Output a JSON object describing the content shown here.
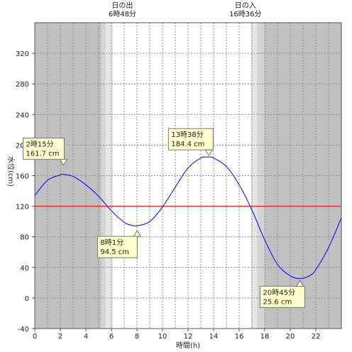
{
  "chart_data": {
    "type": "line",
    "title": "",
    "xlabel": "時間(h)",
    "ylabel": "水位(cm)",
    "xlim": [
      0,
      24
    ],
    "ylim": [
      -40,
      360
    ],
    "x_ticks": [
      0,
      2,
      4,
      6,
      8,
      10,
      12,
      14,
      16,
      18,
      20,
      22
    ],
    "y_ticks": [
      -40,
      0,
      40,
      80,
      120,
      160,
      200,
      240,
      280,
      320
    ],
    "grid": true,
    "sunrise": {
      "label": "日の出",
      "time": "6時48分",
      "hour": 6.8
    },
    "sunset": {
      "label": "日の入",
      "time": "16時36分",
      "hour": 16.6
    },
    "twilight": {
      "dark_end": 5.2,
      "mid_end": 5.55,
      "light_end": 6.1,
      "light_start": 16.95,
      "mid_start": 17.4,
      "dark_start": 18.0
    },
    "reference_level": 120,
    "colors": {
      "night": "#c0c0c0",
      "twilight_mid": "#d4d4d4",
      "twilight_light": "#e6e6e6",
      "curve": "#0000ff",
      "reference": "#ff0000",
      "callout_bg": "#ffffcc"
    },
    "series": [
      {
        "x": [
          0,
          1,
          2,
          2.25,
          3,
          4,
          5,
          6,
          7,
          7.5,
          8.02,
          9,
          10,
          11,
          12,
          13,
          13.63,
          14,
          15,
          16,
          17,
          18,
          19,
          20,
          20.75,
          21.5,
          22,
          23,
          24
        ],
        "values": [
          134,
          154,
          161,
          161.7,
          159,
          148,
          133,
          114,
          99,
          95.5,
          94.5,
          100,
          119,
          145,
          170,
          183,
          184.4,
          183,
          172,
          148,
          115,
          76,
          44,
          29,
          25.6,
          29,
          37,
          66,
          105
        ]
      }
    ],
    "annotations": [
      {
        "time": "2時15分",
        "value": "161.7 cm",
        "x": 2.25,
        "y": 161.7
      },
      {
        "time": "8時1分",
        "value": "94.5 cm",
        "x": 8.02,
        "y": 94.5
      },
      {
        "time": "13時38分",
        "value": "184.4 cm",
        "x": 13.63,
        "y": 184.4
      },
      {
        "time": "20時45分",
        "value": "25.6 cm",
        "x": 20.75,
        "y": 25.6
      }
    ]
  }
}
